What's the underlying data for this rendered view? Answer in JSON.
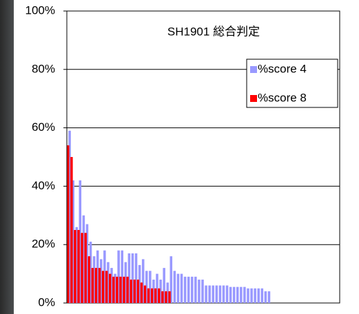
{
  "chart_data": {
    "type": "bar",
    "title": "SH1901 総合判定",
    "categories": [
      null,
      null,
      null,
      null,
      null,
      null,
      null,
      null,
      null,
      null,
      null,
      null,
      null,
      null,
      null,
      null,
      null,
      null,
      null,
      null,
      null,
      null,
      null,
      null,
      null,
      null,
      null,
      null,
      null,
      null,
      null,
      null,
      null,
      null,
      null,
      null,
      null,
      null,
      null,
      null,
      null,
      null,
      null,
      null,
      null,
      null,
      null,
      null,
      null,
      null,
      null,
      null,
      null,
      null,
      null,
      null,
      null,
      null,
      null,
      null,
      null,
      null,
      null,
      null,
      null,
      null,
      null,
      null,
      null,
      null,
      null,
      null,
      null,
      null,
      null,
      null,
      null,
      null
    ],
    "series": [
      {
        "name": "%score 4",
        "color": "#9999ff",
        "values": [
          59,
          42,
          26,
          42,
          30,
          27,
          21,
          16,
          18,
          15,
          18,
          14,
          12,
          10,
          18,
          18,
          14,
          17,
          17,
          17,
          13,
          15,
          11,
          11,
          8,
          10,
          8,
          12,
          7,
          16,
          11,
          10,
          10,
          9,
          9,
          9,
          9,
          8,
          8,
          6,
          6,
          6,
          6,
          6,
          6,
          6,
          5.5,
          5.5,
          5.5,
          5.5,
          5.5,
          5,
          5,
          5,
          5,
          5,
          4,
          4,
          null,
          null,
          null,
          null,
          null,
          null,
          null,
          null,
          null,
          null,
          null,
          null,
          null,
          null,
          null,
          null,
          null,
          null,
          null,
          null
        ]
      },
      {
        "name": "%score 8",
        "color": "#ff0000",
        "values": [
          54,
          50,
          25,
          25,
          24,
          24,
          16,
          12,
          12,
          12,
          11,
          11,
          10,
          9,
          9,
          9,
          9,
          9,
          8,
          8,
          8,
          7,
          6,
          5,
          5,
          5,
          5,
          4,
          4,
          4,
          null,
          null,
          null,
          null,
          null,
          null,
          null,
          null,
          null,
          null,
          null,
          null,
          null,
          null,
          null,
          null,
          null,
          null,
          null,
          null,
          null,
          null,
          null,
          null,
          null,
          null,
          null,
          null,
          null,
          null,
          null,
          null,
          null,
          null,
          null,
          null,
          null,
          null,
          null,
          null,
          null,
          null,
          null,
          null,
          null,
          null,
          null,
          null
        ]
      }
    ],
    "ylim": [
      0,
      100
    ],
    "yticks": [
      {
        "value": 0,
        "label": "0%"
      },
      {
        "value": 20,
        "label": "20%"
      },
      {
        "value": 40,
        "label": "40%"
      },
      {
        "value": 60,
        "label": "60%"
      },
      {
        "value": 80,
        "label": "80%"
      },
      {
        "value": 100,
        "label": "100%"
      }
    ],
    "grid": true,
    "legend": "upper right"
  }
}
